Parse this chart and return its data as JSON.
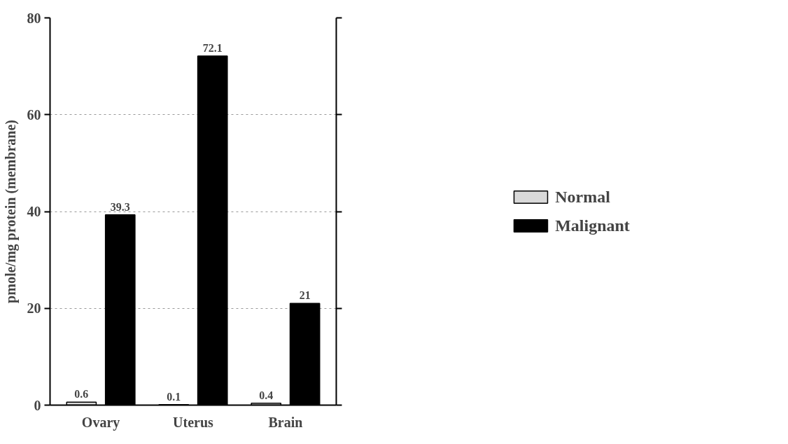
{
  "chart_data": {
    "type": "bar",
    "ylabel": "pmole/mg protein (membrane)",
    "categories": [
      "Ovary",
      "Uterus",
      "Brain"
    ],
    "series": [
      {
        "name": "Normal",
        "color": "#d9d9d9",
        "values": [
          0.6,
          0.1,
          0.4
        ]
      },
      {
        "name": "Malignant",
        "color": "#000000",
        "values": [
          39.3,
          72.1,
          21
        ]
      }
    ],
    "ylim": [
      0,
      80
    ],
    "yticks": [
      0,
      20,
      40,
      60,
      80
    ],
    "grid": "y",
    "legend": "right",
    "data_labels": true
  }
}
